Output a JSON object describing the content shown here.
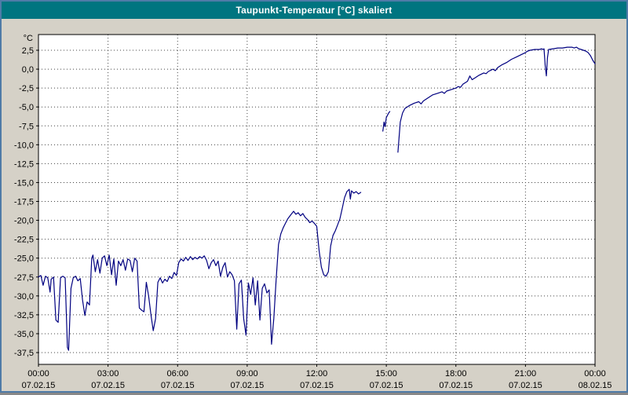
{
  "window": {
    "title": "Taupunkt-Temperatur [°C] skaliert"
  },
  "colors": {
    "title_bar": "#007580",
    "background": "#d5d1c7",
    "plot_background": "#ffffff",
    "grid": "#444444",
    "plot_border": "#000000",
    "line": "#000080",
    "tick_text": "#000000",
    "window_border": "#4f7ba7"
  },
  "chart_data": {
    "type": "line",
    "title": "Taupunkt-Temperatur [°C] skaliert",
    "y_unit": "°C",
    "ylabel": "",
    "xlabel": "",
    "ylim": [
      -39.1,
      4.5
    ],
    "xlim_hours": [
      0,
      24
    ],
    "grid": "dashed",
    "legend": "none",
    "y_ticks": [
      {
        "v": 2.5,
        "label": "2,5"
      },
      {
        "v": 0.0,
        "label": "0,0"
      },
      {
        "v": -2.5,
        "label": "-2,5"
      },
      {
        "v": -5.0,
        "label": "-5,0"
      },
      {
        "v": -7.5,
        "label": "-7,5"
      },
      {
        "v": -10.0,
        "label": "-10,0"
      },
      {
        "v": -12.5,
        "label": "-12,5"
      },
      {
        "v": -15.0,
        "label": "-15,0"
      },
      {
        "v": -17.5,
        "label": "-17,5"
      },
      {
        "v": -20.0,
        "label": "-20,0"
      },
      {
        "v": -22.5,
        "label": "-22,5"
      },
      {
        "v": -25.0,
        "label": "-25,0"
      },
      {
        "v": -27.5,
        "label": "-27,5"
      },
      {
        "v": -30.0,
        "label": "-30,0"
      },
      {
        "v": -32.5,
        "label": "-32,5"
      },
      {
        "v": -35.0,
        "label": "-35,0"
      },
      {
        "v": -37.5,
        "label": "-37,5"
      }
    ],
    "x_ticks": [
      {
        "h": 0,
        "time": "00:00",
        "date": "07.02.15"
      },
      {
        "h": 3,
        "time": "03:00",
        "date": "07.02.15"
      },
      {
        "h": 6,
        "time": "06:00",
        "date": "07.02.15"
      },
      {
        "h": 9,
        "time": "09:00",
        "date": "07.02.15"
      },
      {
        "h": 12,
        "time": "12:00",
        "date": "07.02.15"
      },
      {
        "h": 15,
        "time": "15:00",
        "date": "07.02.15"
      },
      {
        "h": 18,
        "time": "18:00",
        "date": "07.02.15"
      },
      {
        "h": 21,
        "time": "21:00",
        "date": "07.02.15"
      },
      {
        "h": 24,
        "time": "00:00",
        "date": "08.02.15"
      }
    ],
    "series": [
      {
        "name": "Taupunkt-Temperatur",
        "color": "#000080",
        "segments": [
          [
            [
              0.0,
              -27.5
            ],
            [
              0.1,
              -27.3
            ],
            [
              0.2,
              -28.6
            ],
            [
              0.3,
              -27.4
            ],
            [
              0.4,
              -27.6
            ],
            [
              0.5,
              -29.5
            ],
            [
              0.55,
              -27.8
            ],
            [
              0.65,
              -27.5
            ],
            [
              0.75,
              -33.2
            ],
            [
              0.85,
              -33.5
            ],
            [
              0.95,
              -27.6
            ],
            [
              1.05,
              -27.4
            ],
            [
              1.15,
              -27.6
            ],
            [
              1.25,
              -36.8
            ],
            [
              1.3,
              -37.2
            ],
            [
              1.4,
              -29.0
            ],
            [
              1.5,
              -27.6
            ],
            [
              1.6,
              -27.4
            ],
            [
              1.7,
              -28.0
            ],
            [
              1.8,
              -27.7
            ],
            [
              1.9,
              -30.5
            ],
            [
              2.0,
              -32.6
            ],
            [
              2.1,
              -30.8
            ],
            [
              2.2,
              -31.2
            ],
            [
              2.3,
              -25.0
            ],
            [
              2.35,
              -24.6
            ],
            [
              2.45,
              -26.8
            ],
            [
              2.55,
              -25.2
            ],
            [
              2.65,
              -27.0
            ],
            [
              2.75,
              -25.0
            ],
            [
              2.85,
              -24.7
            ],
            [
              2.95,
              -26.0
            ],
            [
              3.05,
              -24.6
            ],
            [
              3.15,
              -27.2
            ],
            [
              3.25,
              -25.1
            ],
            [
              3.35,
              -28.6
            ],
            [
              3.45,
              -25.4
            ],
            [
              3.55,
              -26.0
            ],
            [
              3.65,
              -25.2
            ],
            [
              3.75,
              -26.6
            ],
            [
              3.85,
              -25.1
            ],
            [
              3.95,
              -25.3
            ],
            [
              4.05,
              -26.8
            ],
            [
              4.15,
              -25.0
            ],
            [
              4.25,
              -25.4
            ],
            [
              4.35,
              -31.6
            ],
            [
              4.45,
              -31.9
            ],
            [
              4.55,
              -32.1
            ],
            [
              4.65,
              -28.2
            ],
            [
              4.75,
              -30.0
            ],
            [
              4.85,
              -32.5
            ],
            [
              4.95,
              -34.6
            ],
            [
              5.05,
              -33.0
            ],
            [
              5.15,
              -28.2
            ],
            [
              5.25,
              -27.6
            ],
            [
              5.35,
              -28.3
            ],
            [
              5.45,
              -27.8
            ],
            [
              5.55,
              -28.1
            ],
            [
              5.65,
              -27.4
            ],
            [
              5.75,
              -27.7
            ],
            [
              5.85,
              -26.9
            ],
            [
              5.95,
              -27.3
            ],
            [
              6.05,
              -25.6
            ],
            [
              6.15,
              -25.1
            ],
            [
              6.25,
              -25.4
            ],
            [
              6.35,
              -24.9
            ],
            [
              6.45,
              -25.3
            ],
            [
              6.55,
              -24.8
            ],
            [
              6.65,
              -25.2
            ],
            [
              6.75,
              -24.9
            ],
            [
              6.85,
              -25.1
            ],
            [
              6.95,
              -24.8
            ],
            [
              7.05,
              -25.0
            ],
            [
              7.15,
              -24.7
            ],
            [
              7.25,
              -25.3
            ],
            [
              7.35,
              -26.4
            ],
            [
              7.45,
              -25.6
            ],
            [
              7.55,
              -25.2
            ],
            [
              7.65,
              -26.0
            ],
            [
              7.75,
              -25.4
            ],
            [
              7.85,
              -27.4
            ],
            [
              7.95,
              -26.2
            ],
            [
              8.05,
              -25.6
            ],
            [
              8.15,
              -27.5
            ],
            [
              8.25,
              -26.8
            ],
            [
              8.35,
              -27.2
            ],
            [
              8.45,
              -28.0
            ],
            [
              8.55,
              -34.4
            ],
            [
              8.65,
              -28.4
            ],
            [
              8.75,
              -27.9
            ],
            [
              8.85,
              -33.0
            ],
            [
              8.95,
              -35.2
            ],
            [
              9.05,
              -28.3
            ],
            [
              9.15,
              -29.8
            ],
            [
              9.25,
              -27.6
            ],
            [
              9.35,
              -31.2
            ],
            [
              9.45,
              -28.0
            ],
            [
              9.55,
              -33.2
            ],
            [
              9.65,
              -29.0
            ],
            [
              9.75,
              -28.4
            ],
            [
              9.85,
              -29.6
            ],
            [
              9.95,
              -29.2
            ],
            [
              10.05,
              -36.4
            ],
            [
              10.15,
              -33.0
            ],
            [
              10.25,
              -27.8
            ],
            [
              10.35,
              -23.2
            ],
            [
              10.45,
              -21.8
            ],
            [
              10.55,
              -21.0
            ],
            [
              10.65,
              -20.4
            ],
            [
              10.75,
              -19.8
            ],
            [
              10.85,
              -19.4
            ],
            [
              11.0,
              -18.8
            ],
            [
              11.1,
              -19.2
            ],
            [
              11.2,
              -19.0
            ],
            [
              11.3,
              -19.4
            ],
            [
              11.4,
              -19.1
            ],
            [
              11.5,
              -19.6
            ],
            [
              11.6,
              -19.9
            ],
            [
              11.7,
              -20.3
            ],
            [
              11.8,
              -20.1
            ],
            [
              11.9,
              -20.4
            ],
            [
              12.0,
              -20.8
            ],
            [
              12.1,
              -24.0
            ],
            [
              12.2,
              -26.2
            ],
            [
              12.3,
              -27.2
            ],
            [
              12.4,
              -27.4
            ],
            [
              12.5,
              -26.8
            ],
            [
              12.6,
              -23.4
            ],
            [
              12.7,
              -22.0
            ],
            [
              12.8,
              -21.4
            ],
            [
              12.9,
              -20.6
            ],
            [
              13.0,
              -19.8
            ],
            [
              13.1,
              -18.4
            ],
            [
              13.2,
              -17.0
            ],
            [
              13.3,
              -16.2
            ],
            [
              13.4,
              -15.9
            ],
            [
              13.45,
              -17.2
            ],
            [
              13.5,
              -16.1
            ],
            [
              13.6,
              -16.4
            ],
            [
              13.7,
              -16.2
            ],
            [
              13.8,
              -16.5
            ],
            [
              13.9,
              -16.3
            ]
          ],
          [
            [
              14.85,
              -8.2
            ],
            [
              14.9,
              -7.0
            ],
            [
              14.95,
              -7.6
            ],
            [
              15.0,
              -6.4
            ],
            [
              15.1,
              -5.8
            ],
            [
              15.15,
              -5.6
            ]
          ],
          [
            [
              15.5,
              -11.0
            ],
            [
              15.55,
              -9.0
            ],
            [
              15.6,
              -7.0
            ],
            [
              15.7,
              -5.8
            ],
            [
              15.8,
              -5.2
            ],
            [
              15.9,
              -5.0
            ],
            [
              16.0,
              -4.8
            ],
            [
              16.2,
              -4.5
            ],
            [
              16.4,
              -4.3
            ],
            [
              16.5,
              -4.6
            ],
            [
              16.6,
              -4.2
            ],
            [
              16.8,
              -3.8
            ],
            [
              17.0,
              -3.4
            ],
            [
              17.2,
              -3.2
            ],
            [
              17.4,
              -3.0
            ],
            [
              17.5,
              -3.2
            ],
            [
              17.6,
              -2.9
            ],
            [
              17.8,
              -2.7
            ],
            [
              18.0,
              -2.5
            ],
            [
              18.1,
              -2.3
            ],
            [
              18.2,
              -2.4
            ],
            [
              18.3,
              -2.0
            ],
            [
              18.4,
              -1.8
            ],
            [
              18.5,
              -1.6
            ],
            [
              18.6,
              -0.9
            ],
            [
              18.7,
              -1.4
            ],
            [
              18.8,
              -1.2
            ],
            [
              19.0,
              -0.8
            ],
            [
              19.2,
              -0.5
            ],
            [
              19.3,
              -0.6
            ],
            [
              19.4,
              -0.3
            ],
            [
              19.6,
              0.0
            ],
            [
              19.7,
              -0.2
            ],
            [
              19.8,
              0.2
            ],
            [
              20.0,
              0.6
            ],
            [
              20.2,
              0.9
            ],
            [
              20.4,
              1.3
            ],
            [
              20.6,
              1.6
            ],
            [
              20.8,
              1.9
            ],
            [
              21.0,
              2.2
            ],
            [
              21.1,
              2.4
            ],
            [
              21.2,
              2.5
            ],
            [
              21.4,
              2.6
            ],
            [
              21.6,
              2.6
            ],
            [
              21.7,
              2.7
            ],
            [
              21.75,
              2.6
            ],
            [
              21.8,
              2.7
            ],
            [
              21.85,
              0.5
            ],
            [
              21.9,
              -0.9
            ],
            [
              21.95,
              1.5
            ],
            [
              22.0,
              2.6
            ],
            [
              22.2,
              2.7
            ],
            [
              22.4,
              2.8
            ],
            [
              22.6,
              2.8
            ],
            [
              22.8,
              2.9
            ],
            [
              23.0,
              2.9
            ],
            [
              23.1,
              2.8
            ],
            [
              23.2,
              2.9
            ],
            [
              23.3,
              2.7
            ],
            [
              23.4,
              2.6
            ],
            [
              23.5,
              2.5
            ],
            [
              23.6,
              2.4
            ],
            [
              23.7,
              2.2
            ],
            [
              23.8,
              1.8
            ],
            [
              23.9,
              1.2
            ],
            [
              24.0,
              0.7
            ]
          ]
        ]
      }
    ]
  }
}
